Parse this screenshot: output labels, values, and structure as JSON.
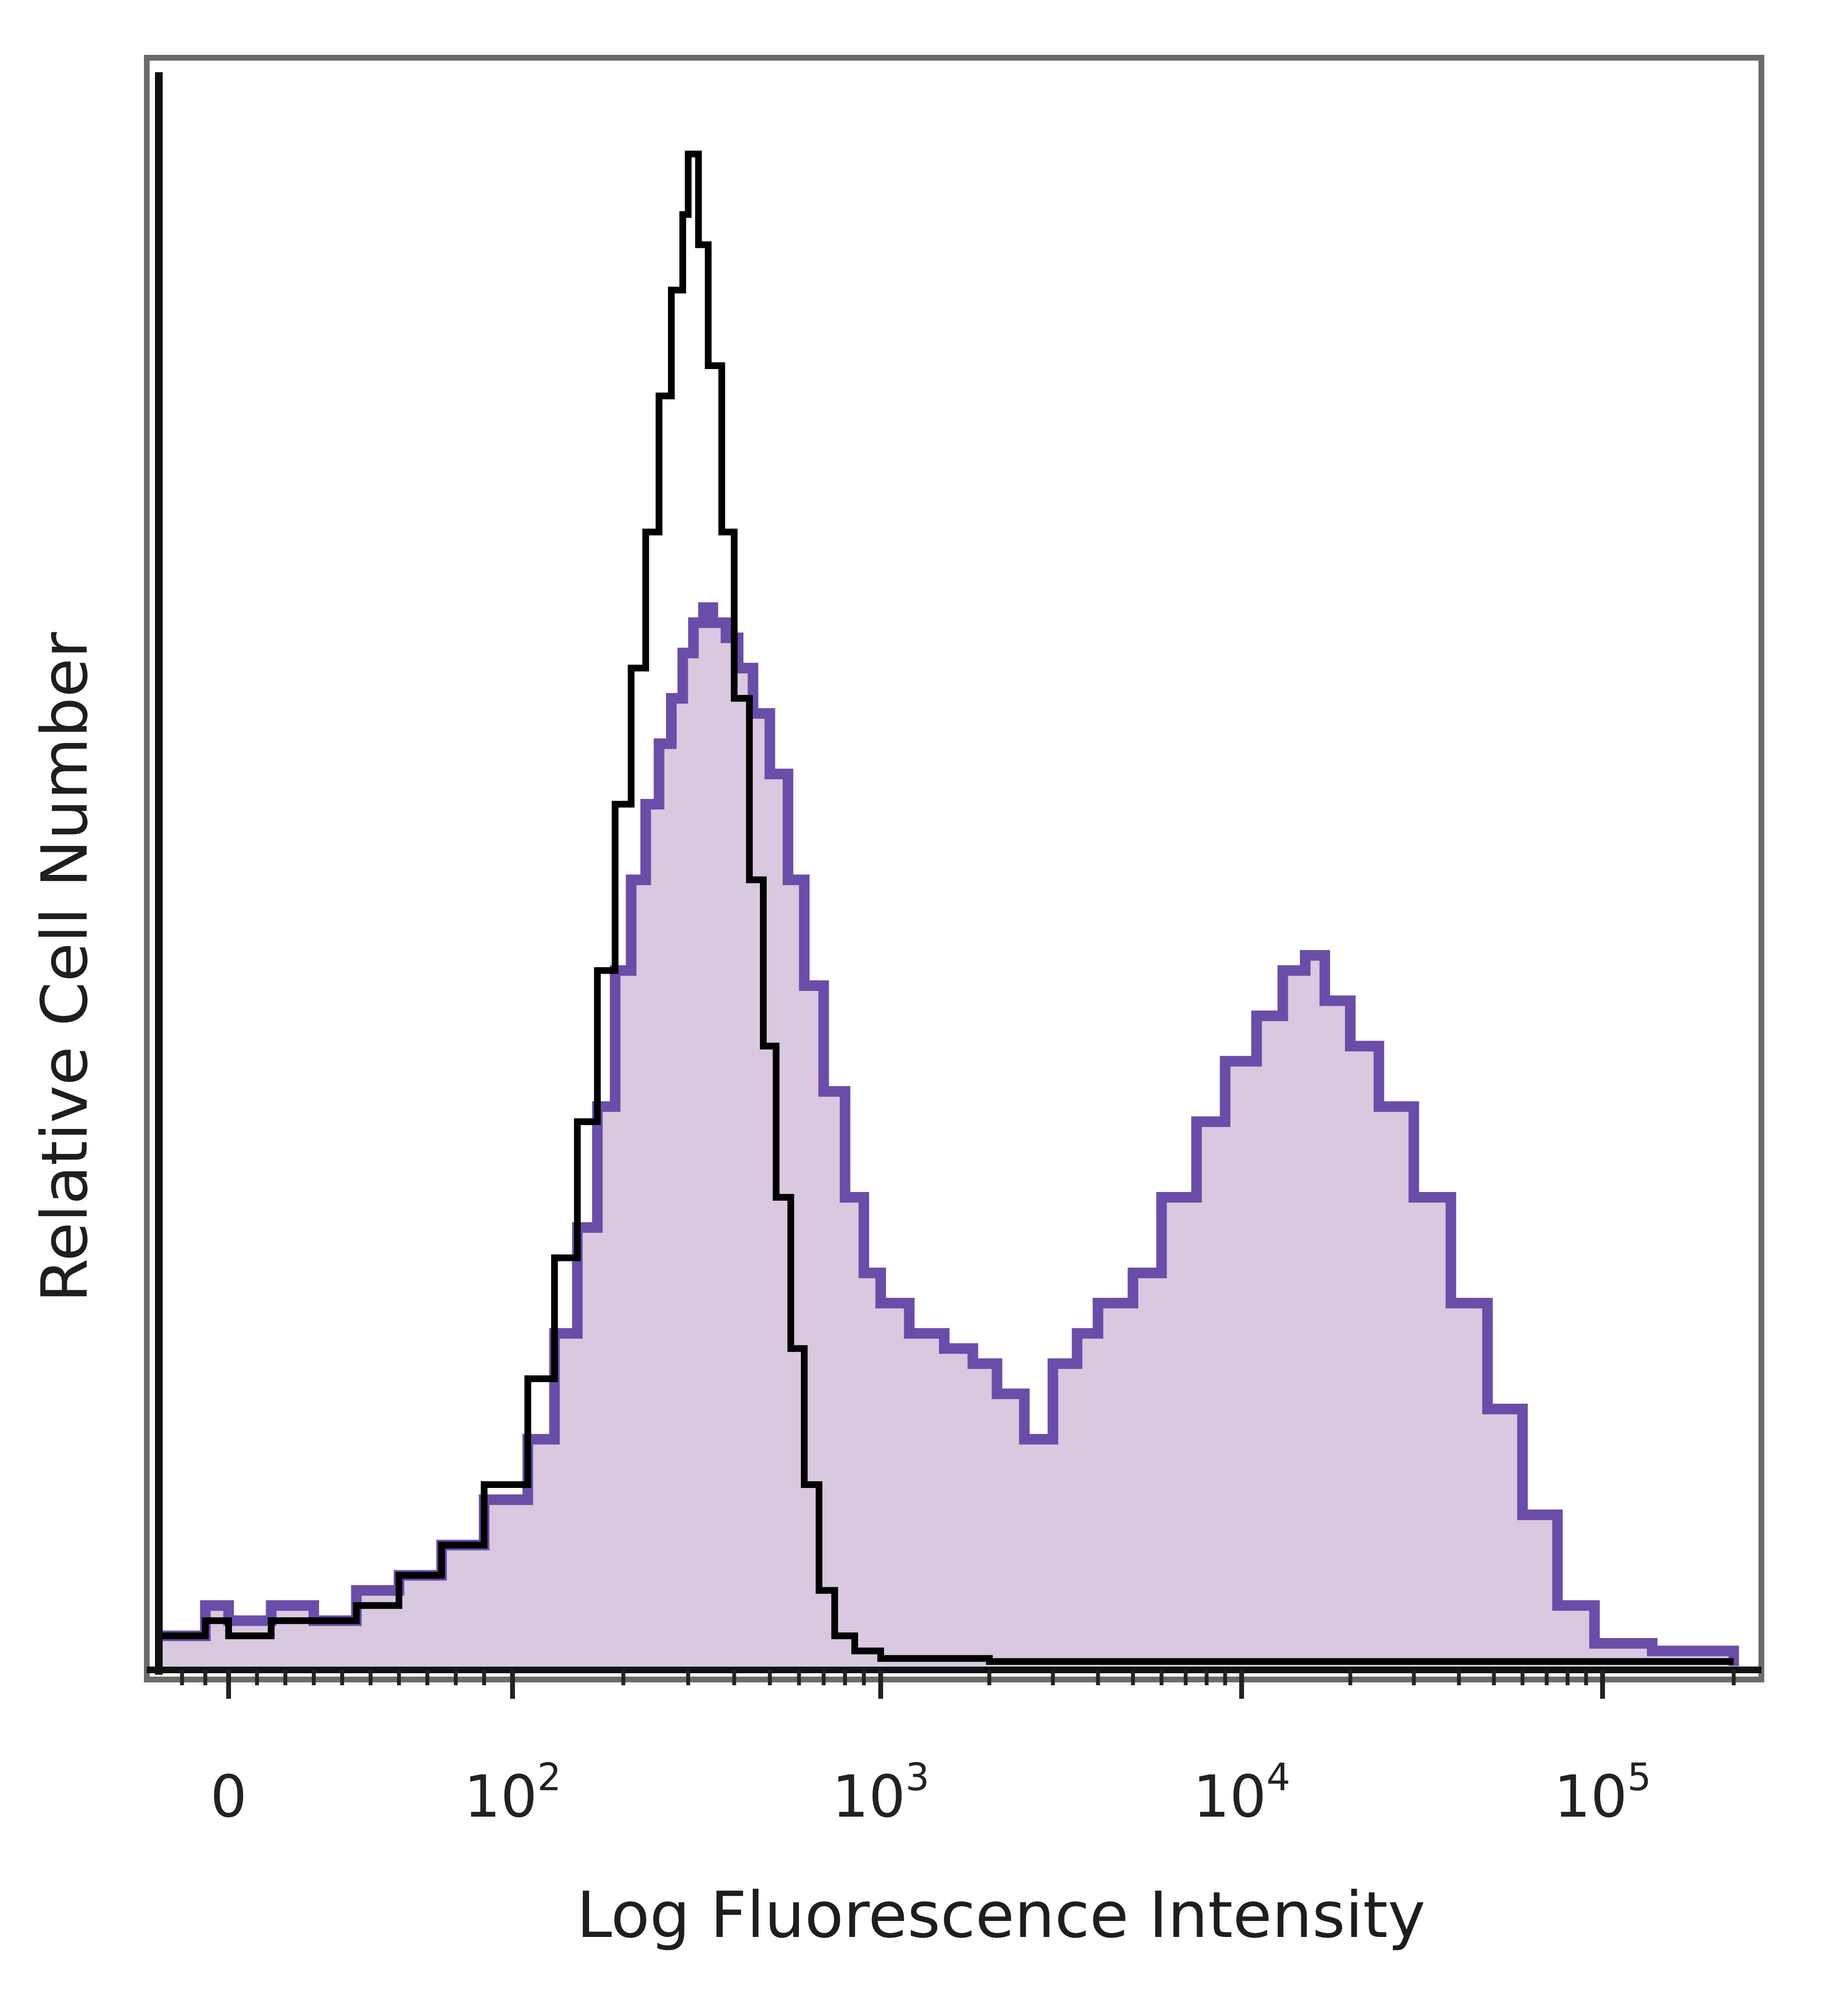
{
  "chart_data": {
    "type": "area",
    "xlabel": "Log Fluorescence Intensity",
    "ylabel": "Relative Cell Number",
    "x_scale": "biexponential",
    "xlim": [
      -30,
      220000
    ],
    "ylim": [
      0,
      100
    ],
    "grid": false,
    "x_ticks": [
      {
        "value": 0,
        "base": "0",
        "exp": ""
      },
      {
        "value": 100,
        "base": "10",
        "exp": "2"
      },
      {
        "value": 1000,
        "base": "10",
        "exp": "3"
      },
      {
        "value": 10000,
        "base": "10",
        "exp": "4"
      },
      {
        "value": 100000,
        "base": "10",
        "exp": "5"
      }
    ],
    "series": [
      {
        "style": "filled",
        "line_color": "#6a4da8",
        "fill_color": "#d8c8e0",
        "points": [
          [
            -30,
            2
          ],
          [
            -10,
            4
          ],
          [
            0,
            3
          ],
          [
            15,
            4
          ],
          [
            30,
            3
          ],
          [
            45,
            5
          ],
          [
            60,
            6
          ],
          [
            75,
            8
          ],
          [
            90,
            11
          ],
          [
            110,
            15
          ],
          [
            130,
            22
          ],
          [
            150,
            29
          ],
          [
            170,
            37
          ],
          [
            190,
            46
          ],
          [
            210,
            52
          ],
          [
            230,
            57
          ],
          [
            250,
            61
          ],
          [
            270,
            64
          ],
          [
            290,
            67
          ],
          [
            310,
            69
          ],
          [
            330,
            70
          ],
          [
            350,
            69
          ],
          [
            380,
            68
          ],
          [
            410,
            66
          ],
          [
            450,
            63
          ],
          [
            500,
            59
          ],
          [
            560,
            52
          ],
          [
            620,
            45
          ],
          [
            700,
            38
          ],
          [
            800,
            31
          ],
          [
            900,
            26
          ],
          [
            1000,
            24
          ],
          [
            1200,
            22
          ],
          [
            1500,
            21
          ],
          [
            1800,
            20
          ],
          [
            2100,
            18
          ],
          [
            2500,
            15
          ],
          [
            3000,
            20
          ],
          [
            3500,
            22
          ],
          [
            4000,
            24
          ],
          [
            5000,
            26
          ],
          [
            6000,
            31
          ],
          [
            7500,
            36
          ],
          [
            9000,
            40
          ],
          [
            11000,
            43
          ],
          [
            13000,
            46
          ],
          [
            15000,
            47
          ],
          [
            17000,
            44
          ],
          [
            20000,
            41
          ],
          [
            24000,
            37
          ],
          [
            30000,
            31
          ],
          [
            38000,
            24
          ],
          [
            48000,
            17
          ],
          [
            60000,
            10
          ],
          [
            75000,
            4
          ],
          [
            95000,
            1.5
          ],
          [
            130000,
            1
          ],
          [
            200000,
            0
          ]
        ]
      },
      {
        "style": "line",
        "line_color": "#000000",
        "points": [
          [
            -30,
            2
          ],
          [
            -10,
            3
          ],
          [
            0,
            2
          ],
          [
            15,
            3
          ],
          [
            30,
            3
          ],
          [
            45,
            4
          ],
          [
            60,
            6
          ],
          [
            75,
            8
          ],
          [
            90,
            12
          ],
          [
            110,
            19
          ],
          [
            130,
            27
          ],
          [
            150,
            36
          ],
          [
            170,
            46
          ],
          [
            190,
            57
          ],
          [
            210,
            66
          ],
          [
            230,
            75
          ],
          [
            250,
            84
          ],
          [
            270,
            91
          ],
          [
            290,
            96
          ],
          [
            300,
            100
          ],
          [
            320,
            94
          ],
          [
            340,
            86
          ],
          [
            370,
            75
          ],
          [
            400,
            64
          ],
          [
            440,
            52
          ],
          [
            480,
            41
          ],
          [
            520,
            31
          ],
          [
            570,
            21
          ],
          [
            620,
            12
          ],
          [
            680,
            5
          ],
          [
            750,
            2
          ],
          [
            850,
            1
          ],
          [
            1000,
            0.5
          ],
          [
            2000,
            0.3
          ],
          [
            10000,
            0.3
          ],
          [
            100000,
            0.3
          ],
          [
            200000,
            0.3
          ]
        ]
      }
    ]
  }
}
